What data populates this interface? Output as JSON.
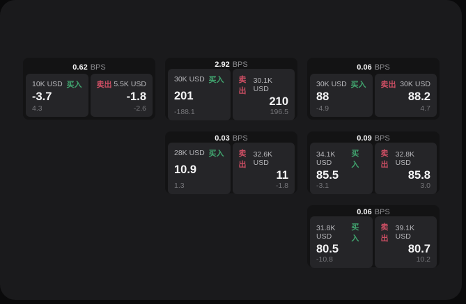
{
  "labels": {
    "unit": "BPS",
    "buy": "买入",
    "sell": "卖出"
  },
  "colors": {
    "green": "#41a56f",
    "red": "#cb4e63"
  },
  "cards": [
    {
      "bps": "0.62",
      "buy": {
        "notional": "10K USD",
        "value": "-3.7",
        "delta": "4.3"
      },
      "sell": {
        "notional": "5.5K USD",
        "value": "-1.8",
        "delta": "-2.6"
      }
    },
    {
      "bps": "2.92",
      "buy": {
        "notional": "30K USD",
        "value": "201",
        "delta": "-188.1"
      },
      "sell": {
        "notional": "30.1K USD",
        "value": "210",
        "delta": "196.5"
      }
    },
    {
      "bps": "0.06",
      "buy": {
        "notional": "30K USD",
        "value": "88",
        "delta": "-4.9"
      },
      "sell": {
        "notional": "30K USD",
        "value": "88.2",
        "delta": "4.7"
      }
    },
    {
      "bps": "0.03",
      "buy": {
        "notional": "28K USD",
        "value": "10.9",
        "delta": "1.3"
      },
      "sell": {
        "notional": "32.6K USD",
        "value": "11",
        "delta": "-1.8"
      }
    },
    {
      "bps": "0.09",
      "buy": {
        "notional": "34.1K USD",
        "value": "85.5",
        "delta": "-3.1"
      },
      "sell": {
        "notional": "32.8K USD",
        "value": "85.8",
        "delta": "3.0"
      }
    },
    {
      "bps": "0.06",
      "buy": {
        "notional": "31.8K USD",
        "value": "80.5",
        "delta": "-10.8"
      },
      "sell": {
        "notional": "39.1K USD",
        "value": "80.7",
        "delta": "10.2"
      }
    }
  ]
}
